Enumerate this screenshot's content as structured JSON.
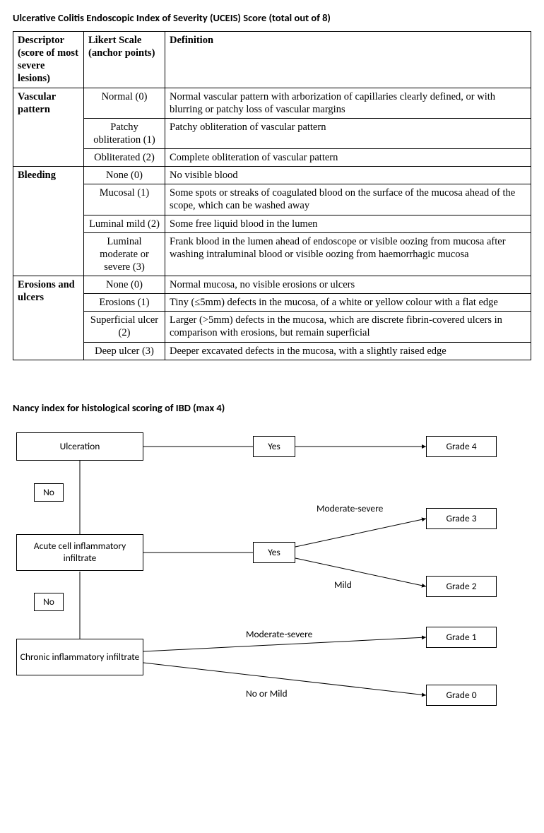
{
  "uceis": {
    "title": "Ulcerative Colitis Endoscopic Index of Severity (UCEIS) Score (total out of 8)",
    "columns": {
      "descriptor": "Descriptor (score of most severe lesions)",
      "likert": "Likert Scale (anchor points)",
      "definition": "Definition"
    },
    "groups": [
      {
        "descriptor": "Vascular pattern",
        "rows": [
          {
            "likert": "Normal (0)",
            "definition": "Normal vascular pattern with arborization of capillaries clearly defined, or with blurring or patchy loss of vascular margins"
          },
          {
            "likert": "Patchy obliteration (1)",
            "definition": "Patchy obliteration of vascular pattern"
          },
          {
            "likert": "Obliterated (2)",
            "definition": "Complete obliteration of vascular pattern"
          }
        ]
      },
      {
        "descriptor": "Bleeding",
        "rows": [
          {
            "likert": "None (0)",
            "definition": "No visible blood"
          },
          {
            "likert": "Mucosal (1)",
            "definition": "Some spots or streaks of coagulated blood on the surface of the mucosa ahead of the scope, which can be washed away"
          },
          {
            "likert": "Luminal mild (2)",
            "definition": "Some free liquid blood in the lumen"
          },
          {
            "likert": "Luminal moderate or severe (3)",
            "definition": "Frank blood in the lumen ahead of endoscope or visible oozing from mucosa after washing intraluminal blood or visible oozing from haemorrhagic mucosa"
          }
        ]
      },
      {
        "descriptor": "Erosions and ulcers",
        "rows": [
          {
            "likert": "None (0)",
            "definition": "Normal mucosa, no visible erosions or ulcers"
          },
          {
            "likert": "Erosions (1)",
            "definition": "Tiny (≤5mm) defects in the mucosa, of a white or yellow colour with a flat edge"
          },
          {
            "likert": "Superficial ulcer (2)",
            "definition": "Larger (>5mm) defects in the mucosa, which are discrete fibrin-covered ulcers in comparison with erosions, but remain superficial"
          },
          {
            "likert": "Deep ulcer (3)",
            "definition": "Deeper excavated defects in the mucosa, with a slightly raised edge"
          }
        ]
      }
    ]
  },
  "nancy": {
    "title": "Nancy index for histological scoring of IBD (max 4)",
    "nodes": {
      "ulceration": "Ulceration",
      "acute": "Acute cell inflammatory infiltrate",
      "chronic": "Chronic inflammatory infiltrate",
      "yes1": "Yes",
      "yes2": "Yes",
      "no1": "No",
      "no2": "No",
      "g4": "Grade 4",
      "g3": "Grade 3",
      "g2": "Grade 2",
      "g1": "Grade 1",
      "g0": "Grade 0"
    },
    "labels": {
      "modsev1": "Moderate-severe",
      "mild": "Mild",
      "modsev2": "Moderate-severe",
      "nomild": "No or Mild"
    },
    "colors": {
      "line": "#000000",
      "background": "#ffffff",
      "text": "#000000"
    }
  }
}
